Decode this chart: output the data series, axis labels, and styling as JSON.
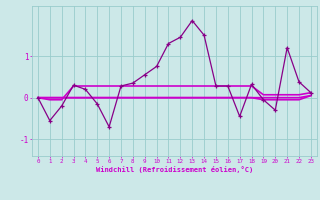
{
  "x": [
    0,
    1,
    2,
    3,
    4,
    5,
    6,
    7,
    8,
    9,
    10,
    11,
    12,
    13,
    14,
    15,
    16,
    17,
    18,
    19,
    20,
    21,
    22,
    23
  ],
  "y_main": [
    0.0,
    -0.55,
    -0.2,
    0.3,
    0.2,
    -0.15,
    -0.7,
    0.28,
    0.35,
    0.55,
    0.75,
    1.3,
    1.45,
    1.85,
    1.5,
    0.28,
    0.28,
    -0.45,
    0.32,
    -0.05,
    -0.3,
    1.2,
    0.38,
    0.12
  ],
  "y_smooth": [
    0.0,
    -0.05,
    -0.05,
    0.28,
    0.28,
    0.28,
    0.28,
    0.28,
    0.28,
    0.28,
    0.28,
    0.28,
    0.28,
    0.28,
    0.28,
    0.28,
    0.28,
    0.28,
    0.28,
    0.07,
    0.07,
    0.07,
    0.07,
    0.12
  ],
  "y_flat": [
    0.0,
    0.0,
    0.0,
    0.0,
    0.0,
    0.0,
    0.0,
    0.0,
    0.0,
    0.0,
    0.0,
    0.0,
    0.0,
    0.0,
    0.0,
    0.0,
    0.0,
    0.0,
    0.0,
    -0.05,
    -0.05,
    -0.05,
    -0.05,
    0.05
  ],
  "y_flat2": [
    0.0,
    0.0,
    0.0,
    0.0,
    0.0,
    0.0,
    0.0,
    0.0,
    0.0,
    0.0,
    0.0,
    0.0,
    0.0,
    0.0,
    0.0,
    0.0,
    0.0,
    0.0,
    0.0,
    0.0,
    0.0,
    0.0,
    0.0,
    0.05
  ],
  "color_main": "#880088",
  "color_lines": "#cc00cc",
  "bg_color": "#cce8e8",
  "grid_color": "#99cccc",
  "xlabel": "Windchill (Refroidissement éolien,°C)",
  "yticks": [
    -1,
    0,
    1
  ],
  "xtick_labels": [
    "0",
    "1",
    "2",
    "3",
    "4",
    "5",
    "6",
    "7",
    "8",
    "9",
    "10",
    "11",
    "12",
    "13",
    "14",
    "15",
    "16",
    "17",
    "18",
    "19",
    "20",
    "21",
    "22",
    "23"
  ],
  "ylim": [
    -1.4,
    2.2
  ],
  "xlim": [
    -0.5,
    23.5
  ]
}
